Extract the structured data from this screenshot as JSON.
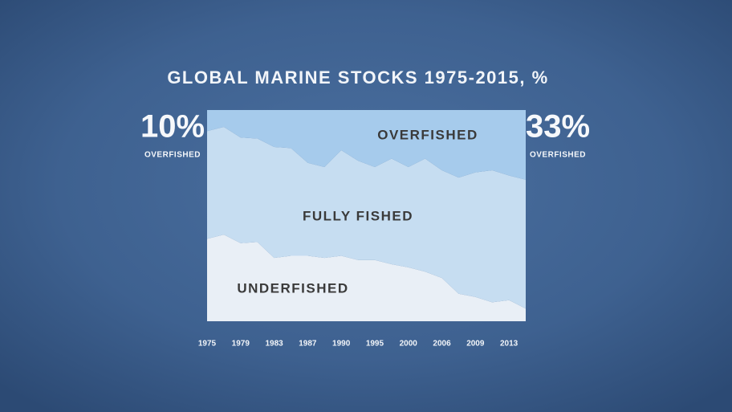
{
  "chart_data": {
    "type": "stacked_area",
    "title": "GLOBAL MARINE STOCKS 1975-2015, %",
    "categories": [
      "1975",
      null,
      "1979",
      null,
      "1983",
      null,
      "1987",
      null,
      "1990",
      null,
      "1995",
      null,
      "2000",
      null,
      "2006",
      null,
      "2009",
      null,
      "2013",
      null
    ],
    "series": [
      {
        "name": "UNDERFISHED",
        "color": "#e9eff6",
        "values": [
          39,
          41,
          37,
          37.5,
          30,
          31,
          31,
          30,
          31,
          29,
          29,
          27,
          25.5,
          23.5,
          20.5,
          13,
          11.5,
          9,
          10,
          6
        ]
      },
      {
        "name": "FULLY FISHED",
        "color": "#c6ddf1",
        "values": [
          51,
          51,
          50,
          49,
          52.5,
          51,
          44,
          43,
          50,
          47,
          44,
          50,
          47.5,
          53.5,
          51,
          55,
          59,
          62.5,
          59,
          61
        ]
      },
      {
        "name": "OVERFISHED",
        "color": "#a6cbec",
        "values": [
          10,
          8,
          13,
          13.5,
          17.5,
          18,
          25,
          27,
          19,
          24,
          27,
          23,
          27,
          23,
          28.5,
          32,
          29.5,
          28.5,
          31,
          33
        ]
      }
    ],
    "ylim": [
      0,
      100
    ],
    "annotations": {
      "left": {
        "value": "10%",
        "label": "OVERFISHED"
      },
      "right": {
        "value": "33%",
        "label": "OVERFISHED"
      }
    }
  }
}
